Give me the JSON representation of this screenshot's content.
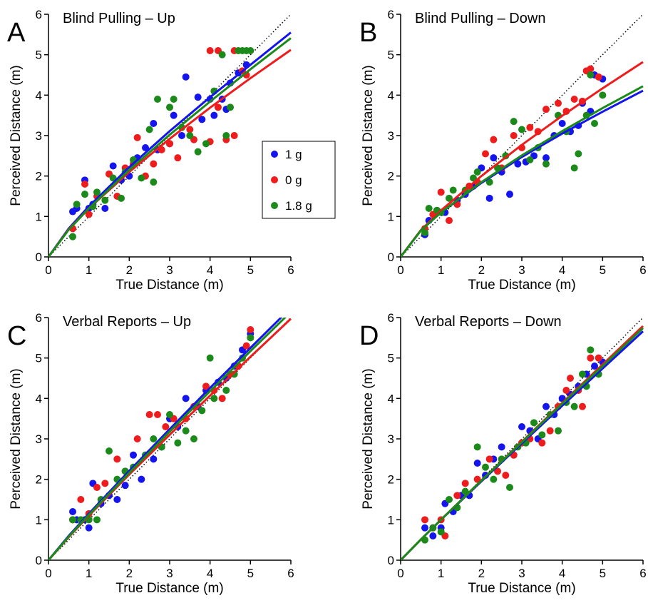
{
  "chart_data": [
    {
      "type": "scatter",
      "panel": "A",
      "title": "Blind Pulling – Up",
      "xlabel": "True Distance (m)",
      "ylabel": "Perceived Distance (m)",
      "xlim": [
        0,
        6
      ],
      "ylim": [
        0,
        6
      ],
      "xticks": [
        0,
        1,
        2,
        3,
        4,
        5,
        6
      ],
      "yticks": [
        0,
        1,
        2,
        3,
        4,
        5,
        6
      ],
      "diagonal": true,
      "legend": "center right",
      "series": [
        {
          "name": "1 g",
          "color": "#1414ee",
          "x": [
            0.6,
            0.7,
            0.9,
            1.0,
            1.1,
            1.4,
            1.6,
            1.8,
            2.0,
            2.2,
            2.4,
            2.6,
            2.7,
            3.0,
            3.1,
            3.3,
            3.4,
            3.7,
            3.8,
            4.0,
            4.1,
            4.3,
            4.4,
            4.5,
            4.7,
            4.9
          ],
          "values": [
            1.12,
            1.2,
            1.9,
            1.2,
            1.3,
            1.2,
            2.25,
            1.9,
            2.0,
            2.45,
            2.7,
            3.3,
            2.65,
            2.8,
            3.5,
            3.0,
            4.45,
            3.95,
            3.4,
            3.9,
            3.5,
            3.9,
            3.65,
            4.3,
            4.55,
            4.75
          ]
        },
        {
          "name": "0 g",
          "color": "#ee1c1c",
          "x": [
            0.6,
            0.9,
            1.0,
            1.2,
            1.5,
            1.7,
            1.9,
            2.1,
            2.2,
            2.4,
            2.6,
            2.8,
            3.0,
            3.2,
            3.5,
            3.6,
            4.0,
            4.0,
            4.2,
            4.4,
            4.6,
            4.6,
            4.8,
            4.9,
            4.2
          ],
          "values": [
            0.7,
            1.8,
            1.05,
            1.5,
            2.05,
            1.5,
            2.2,
            2.3,
            2.95,
            2.0,
            2.3,
            2.65,
            2.8,
            2.45,
            3.15,
            2.9,
            2.85,
            5.1,
            5.1,
            2.9,
            3.0,
            5.1,
            4.6,
            4.5,
            3.7
          ]
        },
        {
          "name": "1.8 g",
          "color": "#1b8a1b",
          "x": [
            0.6,
            0.7,
            0.9,
            1.1,
            1.2,
            1.4,
            1.6,
            1.8,
            1.9,
            2.1,
            2.3,
            2.5,
            2.6,
            2.7,
            3.0,
            3.1,
            3.3,
            3.5,
            3.7,
            3.9,
            4.1,
            4.3,
            4.4,
            4.5,
            4.7,
            4.8,
            4.9,
            5.0
          ],
          "values": [
            0.5,
            1.3,
            1.55,
            1.25,
            1.6,
            1.4,
            1.95,
            1.45,
            2.1,
            2.4,
            1.95,
            3.15,
            1.85,
            3.9,
            3.7,
            3.9,
            3.2,
            3.0,
            2.6,
            2.8,
            4.1,
            5.0,
            3.0,
            3.7,
            5.1,
            5.1,
            5.1,
            5.1
          ]
        }
      ],
      "fits": [
        {
          "color": "#1414ee",
          "x": [
            0,
            0.5,
            1,
            2,
            3,
            4,
            5,
            6
          ],
          "values": [
            0,
            0.7,
            1.25,
            2.22,
            3.11,
            3.95,
            4.75,
            5.55
          ]
        },
        {
          "color": "#ee1c1c",
          "x": [
            0,
            0.5,
            1,
            2,
            3,
            4,
            5,
            6
          ],
          "values": [
            0,
            0.68,
            1.2,
            2.1,
            2.92,
            3.69,
            4.42,
            5.12
          ]
        },
        {
          "color": "#1b8a1b",
          "x": [
            0,
            0.5,
            1,
            2,
            3,
            4,
            5,
            6
          ],
          "values": [
            0,
            0.67,
            1.2,
            2.15,
            3.02,
            3.84,
            4.64,
            5.41
          ]
        }
      ]
    },
    {
      "type": "scatter",
      "panel": "B",
      "title": "Blind Pulling – Down",
      "xlabel": "True Distance (m)",
      "ylabel": "Perceived Distance (m)",
      "xlim": [
        0,
        6
      ],
      "ylim": [
        0,
        6
      ],
      "xticks": [
        0,
        1,
        2,
        3,
        4,
        5,
        6
      ],
      "yticks": [
        0,
        1,
        2,
        3,
        4,
        5,
        6
      ],
      "diagonal": true,
      "series": [
        {
          "color": "#1414ee",
          "x": [
            0.6,
            0.7,
            0.9,
            1.1,
            1.4,
            1.6,
            1.8,
            2.0,
            2.2,
            2.3,
            2.5,
            2.7,
            2.9,
            3.1,
            3.3,
            3.6,
            3.8,
            4.0,
            4.2,
            4.4,
            4.5,
            4.7,
            4.8,
            5.0
          ],
          "values": [
            0.55,
            0.9,
            1.15,
            1.1,
            1.4,
            1.55,
            1.75,
            2.2,
            1.45,
            2.45,
            2.1,
            1.55,
            2.3,
            2.35,
            2.5,
            2.45,
            3.0,
            3.3,
            3.1,
            3.25,
            3.8,
            3.6,
            4.5,
            4.4
          ]
        },
        {
          "color": "#ee1c1c",
          "x": [
            0.6,
            0.8,
            1.0,
            1.2,
            1.4,
            1.7,
            1.9,
            2.1,
            2.3,
            2.5,
            2.8,
            3.0,
            3.2,
            3.4,
            3.6,
            3.9,
            4.1,
            4.3,
            4.5,
            4.6,
            4.7,
            4.9
          ],
          "values": [
            0.7,
            1.05,
            1.6,
            0.9,
            1.3,
            1.75,
            1.85,
            2.55,
            2.9,
            2.2,
            3.0,
            2.7,
            3.2,
            3.1,
            3.65,
            3.8,
            3.6,
            3.9,
            3.85,
            4.6,
            4.65,
            4.45
          ]
        },
        {
          "color": "#1b8a1b",
          "x": [
            0.6,
            0.7,
            0.9,
            1.0,
            1.2,
            1.3,
            1.6,
            1.8,
            1.9,
            2.2,
            2.4,
            2.6,
            2.8,
            3.0,
            3.2,
            3.4,
            3.6,
            3.9,
            4.1,
            4.3,
            4.4,
            4.6,
            4.7,
            4.8,
            5.0
          ],
          "values": [
            0.6,
            1.2,
            1.15,
            1.1,
            1.45,
            1.65,
            1.65,
            1.95,
            2.1,
            1.85,
            2.2,
            2.5,
            3.35,
            3.15,
            2.4,
            2.7,
            2.3,
            3.5,
            3.1,
            2.2,
            2.55,
            3.5,
            4.5,
            3.3,
            4.0
          ]
        }
      ],
      "fits": [
        {
          "color": "#1414ee",
          "x": [
            0,
            0.5,
            1,
            2,
            3,
            4,
            5,
            6
          ],
          "values": [
            0,
            0.66,
            1.1,
            1.83,
            2.47,
            3.05,
            3.59,
            4.11
          ]
        },
        {
          "color": "#ee1c1c",
          "x": [
            0,
            0.5,
            1,
            2,
            3,
            4,
            5,
            6
          ],
          "values": [
            0,
            0.66,
            1.15,
            2.0,
            2.77,
            3.49,
            4.17,
            4.82
          ]
        },
        {
          "color": "#1b8a1b",
          "x": [
            0,
            0.5,
            1,
            2,
            3,
            4,
            5,
            6
          ],
          "values": [
            0,
            0.65,
            1.1,
            1.85,
            2.51,
            3.11,
            3.68,
            4.22
          ]
        }
      ]
    },
    {
      "type": "scatter",
      "panel": "C",
      "title": "Verbal Reports – Up",
      "xlabel": "True Distance (m)",
      "ylabel": "Perceived Distance (m)",
      "xlim": [
        0,
        6
      ],
      "ylim": [
        0,
        6
      ],
      "xticks": [
        0,
        1,
        2,
        3,
        4,
        5,
        6
      ],
      "yticks": [
        0,
        1,
        2,
        3,
        4,
        5,
        6
      ],
      "diagonal": true,
      "series": [
        {
          "color": "#1414ee",
          "x": [
            0.6,
            0.7,
            0.9,
            1.0,
            1.1,
            1.3,
            1.5,
            1.7,
            1.9,
            2.1,
            2.3,
            2.6,
            2.8,
            3.0,
            3.2,
            3.4,
            3.7,
            3.9,
            4.2,
            4.4,
            4.6,
            4.8,
            5.0
          ],
          "values": [
            1.2,
            1.0,
            1.0,
            0.8,
            1.9,
            1.4,
            1.6,
            1.5,
            1.85,
            2.6,
            2.0,
            2.5,
            2.8,
            3.5,
            3.3,
            4.0,
            3.8,
            4.2,
            4.4,
            4.5,
            4.8,
            5.2,
            5.6
          ]
        },
        {
          "color": "#ee1c1c",
          "x": [
            0.6,
            0.8,
            1.0,
            1.2,
            1.4,
            1.7,
            1.9,
            2.2,
            2.5,
            2.7,
            2.9,
            3.1,
            3.4,
            3.6,
            3.9,
            4.1,
            4.3,
            4.5,
            4.7,
            4.9,
            5.0
          ],
          "values": [
            1.0,
            1.5,
            1.15,
            1.8,
            1.9,
            2.5,
            2.2,
            3.0,
            3.6,
            3.6,
            3.3,
            3.5,
            3.5,
            3.8,
            4.3,
            4.2,
            4.0,
            4.6,
            4.8,
            5.3,
            5.7
          ]
        },
        {
          "color": "#1b8a1b",
          "x": [
            0.6,
            0.8,
            1.0,
            1.2,
            1.3,
            1.5,
            1.7,
            1.9,
            2.1,
            2.4,
            2.6,
            2.8,
            3.0,
            3.2,
            3.4,
            3.6,
            3.8,
            4.0,
            4.1,
            4.4,
            4.6,
            4.8,
            5.0
          ],
          "values": [
            1.0,
            1.0,
            1.0,
            1.0,
            1.5,
            2.7,
            2.0,
            2.2,
            2.3,
            2.6,
            3.0,
            2.8,
            3.6,
            2.9,
            3.2,
            3.0,
            3.7,
            5.0,
            4.0,
            4.2,
            4.6,
            5.0,
            5.5
          ]
        }
      ],
      "fits": [
        {
          "color": "#1414ee",
          "x": [
            0,
            0.5,
            1,
            2,
            3,
            4,
            5,
            6
          ],
          "values": [
            0,
            0.6,
            1.15,
            2.21,
            3.24,
            4.26,
            5.25,
            6.24
          ]
        },
        {
          "color": "#ee1c1c",
          "x": [
            0,
            0.5,
            1,
            2,
            3,
            4,
            5,
            6
          ],
          "values": [
            0,
            0.57,
            1.1,
            2.12,
            3.1,
            4.07,
            5.03,
            5.97
          ]
        },
        {
          "color": "#1b8a1b",
          "x": [
            0,
            0.5,
            1,
            2,
            3,
            4,
            5,
            6
          ],
          "values": [
            0,
            0.58,
            1.12,
            2.16,
            3.18,
            4.18,
            5.17,
            6.14
          ]
        }
      ]
    },
    {
      "type": "scatter",
      "panel": "D",
      "title": "Verbal Reports – Down",
      "xlabel": "True Distance (m)",
      "ylabel": "Perceived Distance (m)",
      "xlim": [
        0,
        6
      ],
      "ylim": [
        0,
        6
      ],
      "xticks": [
        0,
        1,
        2,
        3,
        4,
        5,
        6
      ],
      "yticks": [
        0,
        1,
        2,
        3,
        4,
        5,
        6
      ],
      "diagonal": true,
      "series": [
        {
          "color": "#1414ee",
          "x": [
            0.6,
            0.8,
            1.0,
            1.1,
            1.3,
            1.5,
            1.7,
            1.9,
            2.1,
            2.3,
            2.5,
            2.8,
            3.0,
            3.2,
            3.4,
            3.6,
            3.8,
            4.0,
            4.2,
            4.4,
            4.6,
            4.8,
            5.0
          ],
          "values": [
            0.8,
            0.6,
            0.8,
            1.4,
            1.2,
            1.6,
            1.6,
            2.4,
            2.1,
            2.5,
            2.8,
            2.6,
            3.3,
            3.2,
            3.0,
            3.8,
            3.6,
            4.0,
            4.1,
            4.3,
            4.6,
            4.8,
            4.9
          ]
        },
        {
          "color": "#ee1c1c",
          "x": [
            0.6,
            0.8,
            1.0,
            1.1,
            1.4,
            1.6,
            1.9,
            2.2,
            2.4,
            2.6,
            2.8,
            3.0,
            3.2,
            3.5,
            3.7,
            3.9,
            4.1,
            4.2,
            4.4,
            4.5,
            4.7,
            4.9
          ],
          "values": [
            1.0,
            0.8,
            1.0,
            0.6,
            1.6,
            1.9,
            2.0,
            2.5,
            2.2,
            2.1,
            2.6,
            2.9,
            3.0,
            2.9,
            3.2,
            3.8,
            4.2,
            4.5,
            4.2,
            3.8,
            5.0,
            5.0
          ]
        },
        {
          "color": "#1b8a1b",
          "x": [
            0.6,
            0.8,
            1.0,
            1.2,
            1.4,
            1.6,
            1.9,
            2.1,
            2.3,
            2.5,
            2.7,
            2.9,
            3.1,
            3.3,
            3.5,
            3.7,
            3.9,
            4.1,
            4.3,
            4.5,
            4.6,
            4.7,
            4.9
          ],
          "values": [
            0.5,
            0.8,
            0.7,
            1.5,
            1.3,
            1.7,
            2.8,
            2.3,
            2.0,
            2.5,
            1.8,
            2.8,
            2.9,
            3.4,
            3.1,
            3.6,
            3.2,
            3.9,
            3.8,
            4.6,
            4.3,
            5.2,
            4.6
          ]
        }
      ],
      "fits": [
        {
          "color": "#1414ee",
          "x": [
            0,
            0.5,
            1,
            2,
            3,
            4,
            5,
            6
          ],
          "values": [
            0,
            0.51,
            1.0,
            1.95,
            2.89,
            3.82,
            4.74,
            5.66
          ]
        },
        {
          "color": "#ee1c1c",
          "x": [
            0,
            0.5,
            1,
            2,
            3,
            4,
            5,
            6
          ],
          "values": [
            0,
            0.51,
            1.0,
            1.97,
            2.93,
            3.89,
            4.84,
            5.79
          ]
        },
        {
          "color": "#1b8a1b",
          "x": [
            0,
            0.5,
            1,
            2,
            3,
            4,
            5,
            6
          ],
          "values": [
            0,
            0.51,
            1.0,
            1.97,
            2.92,
            3.87,
            4.8,
            5.74
          ]
        }
      ]
    }
  ]
}
